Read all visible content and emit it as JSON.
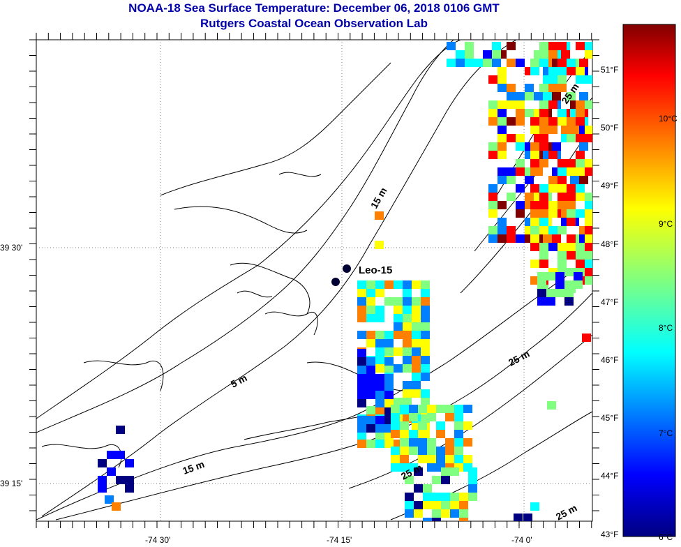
{
  "title_line1": "NOAA-18 Sea Surface Temperature:  December 06, 2018 0106 GMT",
  "title_line2": "Rutgers Coastal Ocean Observation Lab",
  "map": {
    "lat_labels": [
      "39 30'",
      "39 15'"
    ],
    "lon_labels": [
      "-74 30'",
      "-74 15'",
      "-74 0'"
    ],
    "station_label": "Leo-15",
    "contour_labels": [
      "5 m",
      "15 m",
      "15 m",
      "25 m",
      "25 m",
      "25 m",
      "25 m"
    ]
  },
  "colorbar": {
    "fahrenheit_labels": [
      "51°F",
      "50°F",
      "49°F",
      "48°F",
      "47°F",
      "46°F",
      "45°F",
      "44°F",
      "43°F"
    ],
    "celsius_labels": [
      "10°C",
      "9°C",
      "8°C",
      "7°C",
      "6°C"
    ],
    "colors": [
      "#800000",
      "#ff0000",
      "#ff8000",
      "#ffff00",
      "#80ff80",
      "#00ffff",
      "#0080ff",
      "#0000ff",
      "#000080"
    ]
  }
}
